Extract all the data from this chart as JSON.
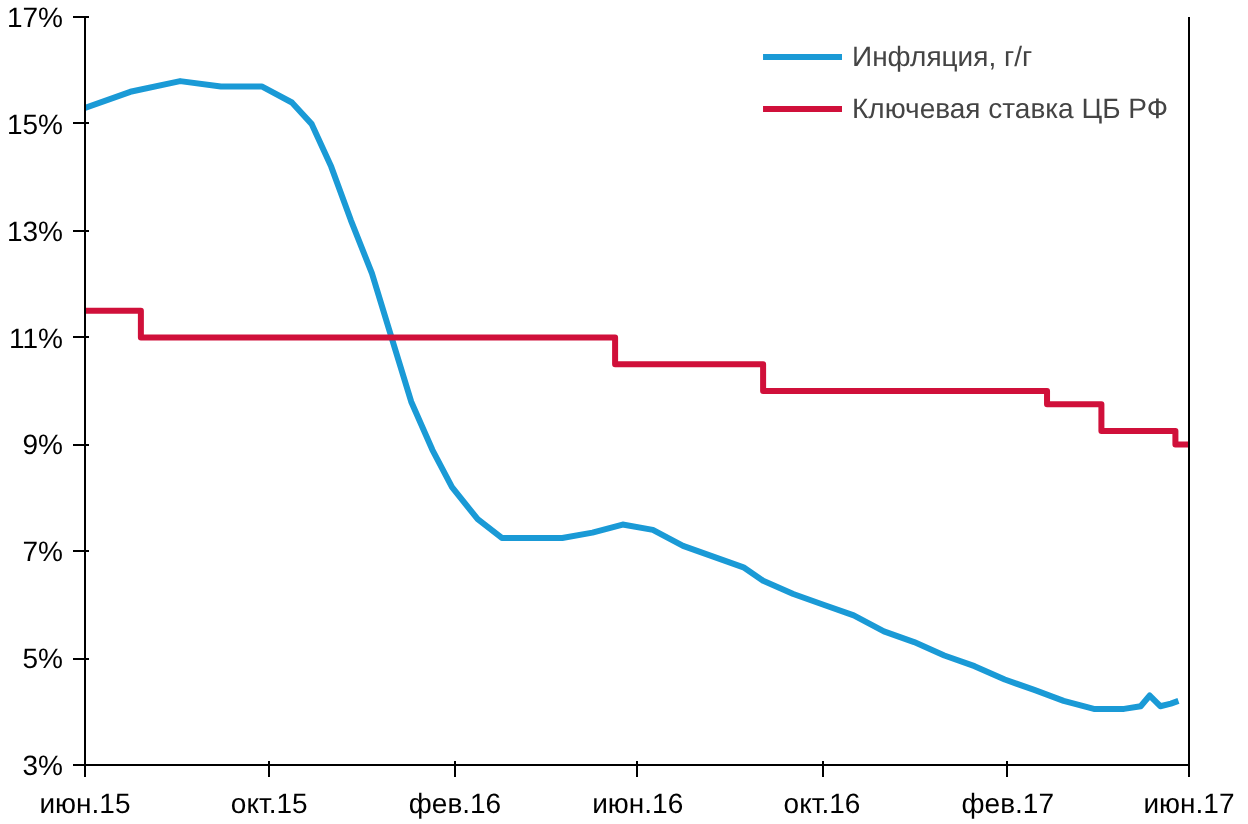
{
  "chart_data": {
    "type": "line",
    "xlim": [
      "2015-06-01",
      "2017-06-01"
    ],
    "xticks": [
      {
        "value": "2015-06-01",
        "label": "июн.15"
      },
      {
        "value": "2015-10-01",
        "label": "окт.15"
      },
      {
        "value": "2016-02-01",
        "label": "фев.16"
      },
      {
        "value": "2016-06-01",
        "label": "июн.16"
      },
      {
        "value": "2016-10-01",
        "label": "окт.16"
      },
      {
        "value": "2017-02-01",
        "label": "фев.17"
      },
      {
        "value": "2017-06-01",
        "label": "июн.17"
      }
    ],
    "ylim": [
      3,
      17
    ],
    "yticks": [
      {
        "value": 3,
        "label": "3%"
      },
      {
        "value": 5,
        "label": "5%"
      },
      {
        "value": 7,
        "label": "7%"
      },
      {
        "value": 9,
        "label": "9%"
      },
      {
        "value": 11,
        "label": "11%"
      },
      {
        "value": 13,
        "label": "13%"
      },
      {
        "value": 15,
        "label": "15%"
      },
      {
        "value": 17,
        "label": "17%"
      }
    ],
    "grid": false,
    "legend": "top right",
    "marker": "none",
    "line_style": "solid",
    "series": [
      {
        "name": "Инфляция, г/г",
        "color": "#1a9ad6",
        "x": [
          "2015-06-01",
          "2015-07-01",
          "2015-08-03",
          "2015-08-30",
          "2015-09-26",
          "2015-10-16",
          "2015-10-29",
          "2015-11-11",
          "2015-11-24",
          "2015-12-08",
          "2015-12-21",
          "2016-01-03",
          "2016-01-17",
          "2016-01-30",
          "2016-02-16",
          "2016-03-03",
          "2016-03-23",
          "2016-04-12",
          "2016-05-02",
          "2016-05-22",
          "2016-06-11",
          "2016-07-01",
          "2016-07-21",
          "2016-08-10",
          "2016-08-23",
          "2016-09-12",
          "2016-10-02",
          "2016-10-22",
          "2016-11-11",
          "2016-12-01",
          "2016-12-21",
          "2017-01-10",
          "2017-01-30",
          "2017-02-19",
          "2017-03-10",
          "2017-03-30",
          "2017-04-19",
          "2017-04-30",
          "2017-05-06",
          "2017-05-13",
          "2017-05-20",
          "2017-05-25"
        ],
        "values": [
          15.3,
          15.6,
          15.8,
          15.7,
          15.7,
          15.4,
          15.0,
          14.2,
          13.2,
          12.2,
          11.0,
          9.8,
          8.9,
          8.2,
          7.6,
          7.25,
          7.25,
          7.25,
          7.35,
          7.5,
          7.4,
          7.1,
          6.9,
          6.7,
          6.45,
          6.2,
          6.0,
          5.8,
          5.5,
          5.3,
          5.05,
          4.85,
          4.6,
          4.4,
          4.2,
          4.05,
          4.05,
          4.1,
          4.3,
          4.1,
          4.15,
          4.2
        ]
      },
      {
        "name": "Ключевая ставка ЦБ РФ",
        "color": "#d0103a",
        "type": "step",
        "x": [
          "2015-06-01",
          "2015-07-08",
          "2016-05-17",
          "2016-08-23",
          "2017-02-27",
          "2017-04-04",
          "2017-05-23",
          "2017-06-01"
        ],
        "values": [
          11.5,
          11,
          10.5,
          10,
          9.75,
          9.25,
          9,
          9
        ]
      }
    ]
  }
}
